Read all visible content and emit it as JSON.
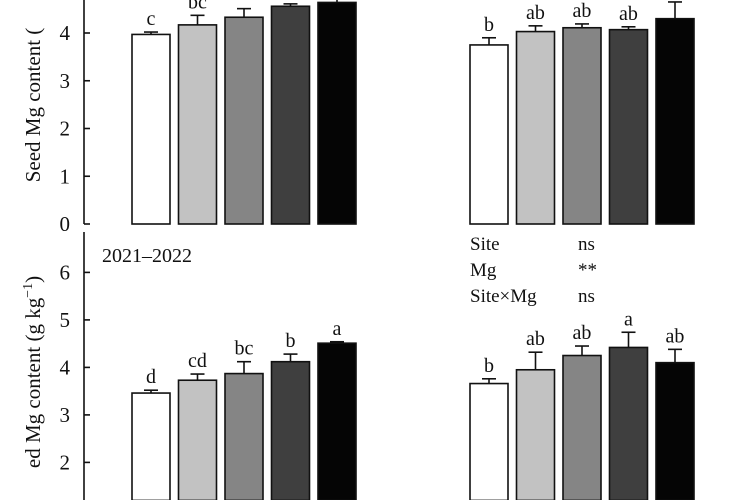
{
  "chart_data": [
    {
      "type": "bar",
      "title": "",
      "ylabel": "Seed Mg content (",
      "ylim": [
        0,
        5
      ],
      "yticks": [
        0,
        1,
        2,
        3,
        4
      ],
      "series_colors": [
        "#ffffff",
        "#c2c2c2",
        "#858585",
        "#3f3f3f",
        "#050505"
      ],
      "groups": [
        {
          "values": [
            3.97,
            4.17,
            4.33,
            4.56,
            4.64
          ],
          "errors": [
            0.05,
            0.2,
            0.18,
            0.05,
            0.1
          ],
          "letters": [
            "c",
            "bc",
            "",
            "",
            ""
          ]
        },
        {
          "values": [
            3.75,
            4.03,
            4.11,
            4.07,
            4.3
          ],
          "errors": [
            0.15,
            0.12,
            0.08,
            0.06,
            0.35
          ],
          "letters": [
            "b",
            "ab",
            "ab",
            "ab",
            ""
          ]
        }
      ]
    },
    {
      "type": "bar",
      "title": "2021–2022",
      "ylabel": "ed Mg content (g kg",
      "ylabel_sup": "−1",
      "ylabel_close": ")",
      "ylim": [
        1.2,
        7.0
      ],
      "yticks": [
        2,
        3,
        4,
        5,
        6
      ],
      "series_colors": [
        "#ffffff",
        "#c2c2c2",
        "#858585",
        "#3f3f3f",
        "#050505"
      ],
      "groups": [
        {
          "values": [
            3.46,
            3.73,
            3.87,
            4.12,
            4.51
          ],
          "errors": [
            0.06,
            0.13,
            0.25,
            0.16,
            0.03
          ],
          "letters": [
            "d",
            "cd",
            "bc",
            "b",
            "a"
          ]
        },
        {
          "values": [
            3.66,
            3.95,
            4.25,
            4.42,
            4.1
          ],
          "errors": [
            0.1,
            0.37,
            0.2,
            0.32,
            0.28
          ],
          "letters": [
            "b",
            "ab",
            "ab",
            "a",
            "ab"
          ]
        }
      ],
      "stats": [
        {
          "label": "Site",
          "value": "ns"
        },
        {
          "label": "Mg",
          "value": "**"
        },
        {
          "label": "Site×Mg",
          "value": "ns"
        }
      ]
    }
  ]
}
